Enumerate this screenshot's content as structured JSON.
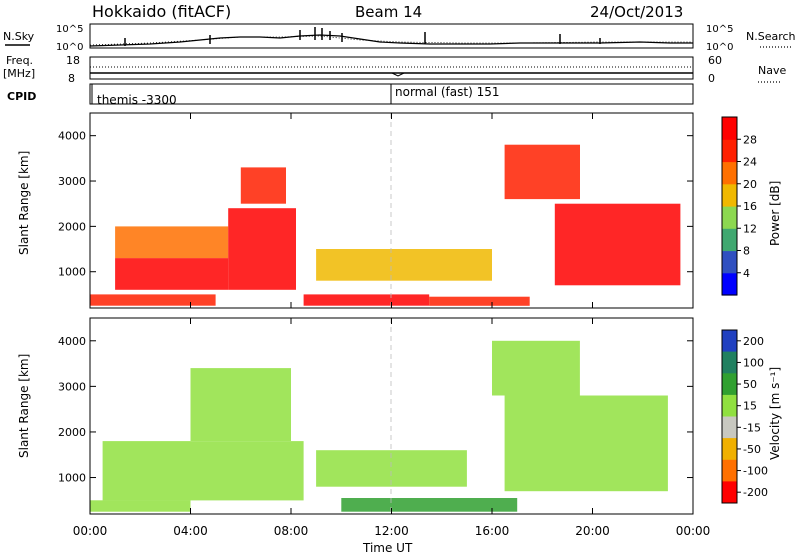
{
  "header": {
    "station": "Hokkaido (fitACF)",
    "beam": "Beam 14",
    "date": "24/Oct/2013"
  },
  "top_panels": {
    "nsky_label": "N.Sky",
    "nsearch_label": "N.Search",
    "noise_left_ticks": [
      "10^5",
      "10^0"
    ],
    "noise_right_ticks": [
      "10^5",
      "10^0"
    ],
    "freq_label_line1": "Freq.",
    "freq_label_line2": "[MHz]",
    "freq_ticks": [
      "18",
      "8"
    ],
    "nave_label": "Nave",
    "nave_ticks": [
      "60",
      "0"
    ],
    "cpid_label": "CPID",
    "cpid_modes": [
      {
        "name": "themis -3300",
        "start_hour": 0
      },
      {
        "name": "normal (fast) 151",
        "start_hour": 12
      }
    ]
  },
  "chart_data": [
    {
      "type": "heatmap",
      "title": "",
      "quantity": "Power",
      "xlabel": "",
      "ylabel": "Slant Range [km]",
      "xlim": [
        0,
        24
      ],
      "ylim": [
        200,
        4500
      ],
      "yticks": [
        1000,
        2000,
        3000,
        4000
      ],
      "colorbar": {
        "label": "Power [dB]",
        "ticks": [
          4,
          8,
          12,
          16,
          20,
          24,
          28
        ],
        "colors": [
          "#0000ff",
          "#3050c0",
          "#40a870",
          "#8cd850",
          "#f0b800",
          "#ff7000",
          "#ff2000",
          "#ff0000"
        ]
      },
      "regions": [
        {
          "t0": 1.0,
          "t1": 5.5,
          "r0": 600,
          "r1": 1300,
          "level": 28
        },
        {
          "t0": 1.0,
          "t1": 5.5,
          "r0": 1300,
          "r1": 2000,
          "level": 18
        },
        {
          "t0": 5.5,
          "t1": 8.2,
          "r0": 600,
          "r1": 2400,
          "level": 28
        },
        {
          "t0": 6.0,
          "t1": 7.8,
          "r0": 2500,
          "r1": 3300,
          "level": 22
        },
        {
          "t0": 0.0,
          "t1": 5.0,
          "r0": 250,
          "r1": 500,
          "level": 24
        },
        {
          "t0": 8.5,
          "t1": 13.5,
          "r0": 250,
          "r1": 500,
          "level": 28
        },
        {
          "t0": 13.5,
          "t1": 17.5,
          "r0": 250,
          "r1": 450,
          "level": 24
        },
        {
          "t0": 9.0,
          "t1": 16.0,
          "r0": 800,
          "r1": 1500,
          "level": 14
        },
        {
          "t0": 16.5,
          "t1": 19.5,
          "r0": 2600,
          "r1": 3800,
          "level": 24
        },
        {
          "t0": 18.5,
          "t1": 23.5,
          "r0": 700,
          "r1": 2500,
          "level": 28
        }
      ]
    },
    {
      "type": "heatmap",
      "title": "",
      "quantity": "Velocity",
      "xlabel": "Time UT",
      "ylabel": "Slant Range [km]",
      "xlim": [
        0,
        24
      ],
      "ylim": [
        200,
        4500
      ],
      "xticks": [
        "00:00",
        "04:00",
        "08:00",
        "12:00",
        "16:00",
        "20:00",
        "00:00"
      ],
      "yticks": [
        1000,
        2000,
        3000,
        4000
      ],
      "colorbar": {
        "label": "Velocity [m s⁻¹]",
        "ticks": [
          "200",
          "100",
          "50",
          "15",
          "-15",
          "-50",
          "-100",
          "-200"
        ],
        "colors": [
          "#2040c0",
          "#208060",
          "#30a030",
          "#90e040",
          "#c8c8c0",
          "#f0b000",
          "#ff7000",
          "#ff0000"
        ]
      },
      "regions": [
        {
          "t0": 0.5,
          "t1": 8.5,
          "r0": 500,
          "r1": 1800,
          "level": 0
        },
        {
          "t0": 4.0,
          "t1": 8.0,
          "r0": 1800,
          "r1": 3400,
          "level": 0
        },
        {
          "t0": 9.0,
          "t1": 15.0,
          "r0": 800,
          "r1": 1600,
          "level": 0
        },
        {
          "t0": 10.0,
          "t1": 17.0,
          "r0": 250,
          "r1": 550,
          "level": 40
        },
        {
          "t0": 16.5,
          "t1": 23.0,
          "r0": 700,
          "r1": 2800,
          "level": 30
        },
        {
          "t0": 16.0,
          "t1": 19.5,
          "r0": 2800,
          "r1": 4000,
          "level": 30
        },
        {
          "t0": 0.0,
          "t1": 4.0,
          "r0": 250,
          "r1": 500,
          "level": 0
        }
      ]
    }
  ]
}
